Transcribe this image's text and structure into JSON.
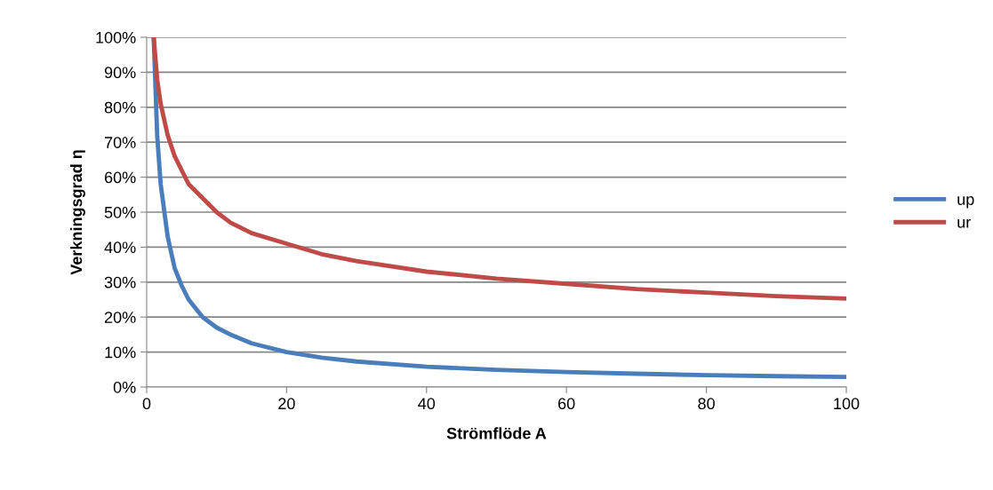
{
  "chart_data": {
    "type": "line",
    "xlabel": "Strömflöde A",
    "ylabel": "Verkningsgrad η",
    "xlim": [
      0,
      100
    ],
    "xticks": [
      0,
      20,
      40,
      60,
      80,
      100
    ],
    "ylim": [
      0,
      100
    ],
    "yticks": [
      {
        "value": 0,
        "label": "0%"
      },
      {
        "value": 10,
        "label": "10%"
      },
      {
        "value": 20,
        "label": "20%"
      },
      {
        "value": 30,
        "label": "30%"
      },
      {
        "value": 40,
        "label": "40%"
      },
      {
        "value": 50,
        "label": "50%"
      },
      {
        "value": 60,
        "label": "60%"
      },
      {
        "value": 70,
        "label": "70%"
      },
      {
        "value": 80,
        "label": "80%"
      },
      {
        "value": 90,
        "label": "90%"
      },
      {
        "value": 100,
        "label": "100%"
      }
    ],
    "grid": "y",
    "legend": "right",
    "marker": "none",
    "line_style": "solid",
    "series": [
      {
        "name": "up",
        "color": "#4a7ebb",
        "x": [
          1,
          1.5,
          2,
          3,
          4,
          5,
          6,
          8,
          10,
          12,
          15,
          20,
          25,
          30,
          40,
          50,
          60,
          70,
          80,
          90,
          100
        ],
        "values": [
          100,
          72,
          58,
          43,
          34,
          29,
          25,
          20,
          17,
          15,
          12.5,
          10,
          8.4,
          7.3,
          5.8,
          4.9,
          4.3,
          3.8,
          3.4,
          3.1,
          2.9
        ]
      },
      {
        "name": "ur",
        "color": "#be4b48",
        "x": [
          1,
          1.5,
          2,
          3,
          4,
          5,
          6,
          8,
          10,
          12,
          15,
          20,
          25,
          30,
          40,
          50,
          60,
          70,
          80,
          90,
          100
        ],
        "values": [
          100,
          88,
          81,
          72,
          66,
          62,
          58,
          54,
          50,
          47,
          44,
          41,
          38,
          36,
          33,
          31,
          29.5,
          28,
          27,
          26,
          25.3
        ]
      }
    ]
  }
}
